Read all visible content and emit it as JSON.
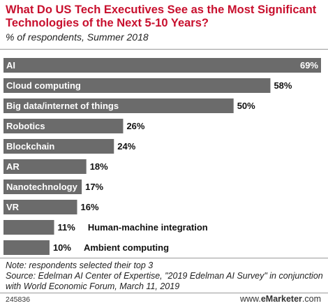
{
  "title": "What Do US Tech Executives See as the Most Significant Technologies of the Next 5-10 Years?",
  "subtitle": "% of respondents, Summer 2018",
  "note_line1": "Note: respondents selected their top 3",
  "note_line2": "Source: Edelman AI Center of Expertise, \"2019 Edelman AI Survey\" in conjunction with World Economic Forum, March 11, 2019",
  "footer_id": "245836",
  "brand_prefix": "www.",
  "brand_name": "eMarketer",
  "brand_suffix": ".com",
  "colors": {
    "bar": "#6b6b6b",
    "title": "#c8102e",
    "label_inside": "#ffffff",
    "label_outside": "#111111"
  },
  "chart_data": {
    "type": "bar",
    "orientation": "horizontal",
    "categories": [
      "AI",
      "Cloud computing",
      "Big data/internet of things",
      "Robotics",
      "Blockchain",
      "AR",
      "Nanotechnology",
      "VR",
      "Human-machine integration",
      "Ambient computing"
    ],
    "values": [
      69,
      58,
      50,
      26,
      24,
      18,
      17,
      16,
      11,
      10
    ],
    "value_labels": [
      "69%",
      "58%",
      "50%",
      "26%",
      "24%",
      "18%",
      "17%",
      "16%",
      "11%",
      "10%"
    ],
    "title": "What Do US Tech Executives See as the Most Significant Technologies of the Next 5-10 Years?",
    "xlabel": "",
    "ylabel": "",
    "xlim": [
      0,
      69
    ],
    "grid": false
  }
}
